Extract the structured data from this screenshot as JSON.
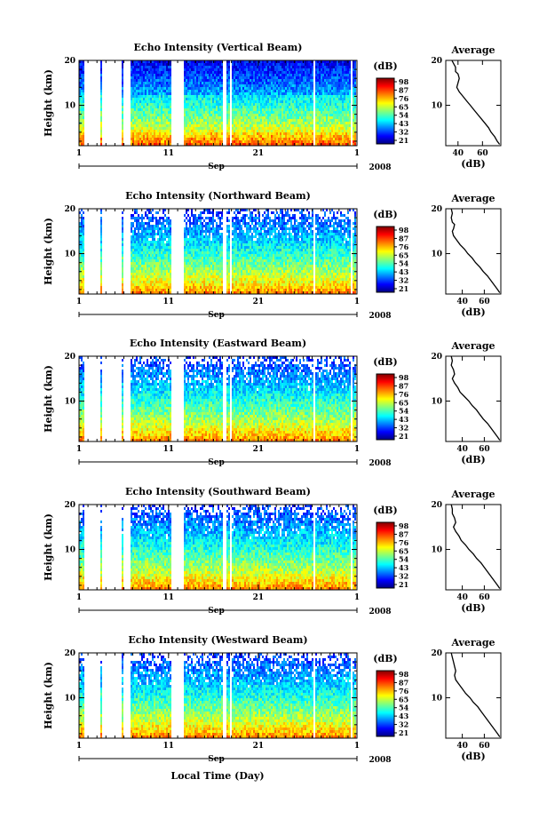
{
  "figure": {
    "xlabel": "Local Time (Day)",
    "month_label": "Sep",
    "year_label": "2008"
  },
  "chart_data": [
    {
      "type": "heatmap",
      "title": "Echo Intensity (Vertical Beam)",
      "ylabel": "Height (km)",
      "x_ticks": [
        "1",
        "11",
        "21",
        "1"
      ],
      "y_ticks": [
        "10",
        "20"
      ],
      "ylim": [
        1,
        20
      ],
      "colorbar": {
        "unit": "(dB)",
        "ticks": [
          "98",
          "87",
          "76",
          "65",
          "54",
          "43",
          "32",
          "21"
        ]
      },
      "profile": {
        "title": "Average",
        "x_ticks": [
          "40",
          "60"
        ],
        "xlabel": "(dB)",
        "y_ticks": [
          "10",
          "20"
        ],
        "xlim": [
          30,
          75
        ],
        "points": [
          [
            35,
            20
          ],
          [
            37,
            19
          ],
          [
            38,
            18.5
          ],
          [
            38,
            17.5
          ],
          [
            40,
            17
          ],
          [
            41,
            16
          ],
          [
            40,
            15
          ],
          [
            39,
            14
          ],
          [
            41,
            13
          ],
          [
            44,
            12
          ],
          [
            47,
            11
          ],
          [
            50,
            10
          ],
          [
            53,
            9
          ],
          [
            56,
            8
          ],
          [
            59,
            7
          ],
          [
            62,
            6
          ],
          [
            65,
            5
          ],
          [
            67,
            4
          ],
          [
            70,
            3
          ],
          [
            72,
            2
          ],
          [
            74,
            1.3
          ]
        ]
      }
    },
    {
      "type": "heatmap",
      "title": "Echo Intensity (Northward Beam)",
      "ylabel": "Height (km)",
      "x_ticks": [
        "1",
        "11",
        "21",
        "1"
      ],
      "y_ticks": [
        "10",
        "20"
      ],
      "ylim": [
        1,
        20
      ],
      "colorbar": {
        "unit": "(dB)",
        "ticks": [
          "98",
          "87",
          "76",
          "65",
          "54",
          "43",
          "32",
          "21"
        ]
      },
      "profile": {
        "title": "Average",
        "x_ticks": [
          "40",
          "60"
        ],
        "xlabel": "(dB)",
        "y_ticks": [
          "10",
          "20"
        ],
        "xlim": [
          25,
          75
        ],
        "points": [
          [
            30,
            20
          ],
          [
            31,
            19
          ],
          [
            30,
            18
          ],
          [
            31,
            17
          ],
          [
            33,
            16.5
          ],
          [
            32,
            15.5
          ],
          [
            31,
            15
          ],
          [
            32,
            14
          ],
          [
            35,
            13
          ],
          [
            38,
            12
          ],
          [
            42,
            11
          ],
          [
            45,
            10
          ],
          [
            49,
            9
          ],
          [
            52,
            8
          ],
          [
            56,
            7
          ],
          [
            59,
            6
          ],
          [
            63,
            5
          ],
          [
            66,
            4
          ],
          [
            69,
            3
          ],
          [
            72,
            2
          ],
          [
            74,
            1.3
          ]
        ]
      }
    },
    {
      "type": "heatmap",
      "title": "Echo Intensity (Eastward Beam)",
      "ylabel": "Height (km)",
      "x_ticks": [
        "1",
        "11",
        "21",
        "1"
      ],
      "y_ticks": [
        "10",
        "20"
      ],
      "ylim": [
        1,
        20
      ],
      "colorbar": {
        "unit": "(dB)",
        "ticks": [
          "98",
          "87",
          "76",
          "65",
          "54",
          "43",
          "32",
          "21"
        ]
      },
      "profile": {
        "title": "Average",
        "x_ticks": [
          "40",
          "60"
        ],
        "xlabel": "(dB)",
        "y_ticks": [
          "10",
          "20"
        ],
        "xlim": [
          25,
          75
        ],
        "points": [
          [
            30,
            20
          ],
          [
            31,
            19
          ],
          [
            30,
            18
          ],
          [
            32,
            17
          ],
          [
            33,
            16
          ],
          [
            31,
            15
          ],
          [
            33,
            14
          ],
          [
            36,
            13
          ],
          [
            38,
            12
          ],
          [
            42,
            11
          ],
          [
            46,
            10
          ],
          [
            49,
            9
          ],
          [
            53,
            8
          ],
          [
            56,
            7
          ],
          [
            59,
            6
          ],
          [
            63,
            5
          ],
          [
            66,
            4
          ],
          [
            69,
            3
          ],
          [
            72,
            2
          ],
          [
            74,
            1.3
          ]
        ]
      }
    },
    {
      "type": "heatmap",
      "title": "Echo Intensity (Southward Beam)",
      "ylabel": "Height (km)",
      "x_ticks": [
        "1",
        "11",
        "21",
        "1"
      ],
      "y_ticks": [
        "10",
        "20"
      ],
      "ylim": [
        1,
        20
      ],
      "colorbar": {
        "unit": "(dB)",
        "ticks": [
          "98",
          "87",
          "76",
          "65",
          "54",
          "43",
          "32",
          "21"
        ]
      },
      "profile": {
        "title": "Average",
        "x_ticks": [
          "40",
          "60"
        ],
        "xlabel": "(dB)",
        "y_ticks": [
          "10",
          "20"
        ],
        "xlim": [
          25,
          75
        ],
        "points": [
          [
            30,
            20
          ],
          [
            31,
            19
          ],
          [
            31,
            18
          ],
          [
            33,
            17
          ],
          [
            34,
            16
          ],
          [
            32,
            15
          ],
          [
            34,
            14
          ],
          [
            37,
            13
          ],
          [
            39,
            12
          ],
          [
            43,
            11
          ],
          [
            46,
            10
          ],
          [
            50,
            9
          ],
          [
            53,
            8
          ],
          [
            57,
            7
          ],
          [
            60,
            6
          ],
          [
            63,
            5
          ],
          [
            66,
            4
          ],
          [
            69,
            3
          ],
          [
            72,
            2
          ],
          [
            74,
            1.3
          ]
        ]
      }
    },
    {
      "type": "heatmap",
      "title": "Echo Intensity (Westward Beam)",
      "ylabel": "Height (km)",
      "x_ticks": [
        "1",
        "11",
        "21",
        "1"
      ],
      "y_ticks": [
        "10",
        "20"
      ],
      "ylim": [
        1,
        20
      ],
      "colorbar": {
        "unit": "(dB)",
        "ticks": [
          "98",
          "87",
          "76",
          "65",
          "54",
          "43",
          "32",
          "21"
        ]
      },
      "profile": {
        "title": "Average",
        "x_ticks": [
          "40",
          "60"
        ],
        "xlabel": "(dB)",
        "y_ticks": [
          "10",
          "20"
        ],
        "xlim": [
          25,
          75
        ],
        "points": [
          [
            30,
            20
          ],
          [
            31,
            19
          ],
          [
            32,
            18
          ],
          [
            33,
            17
          ],
          [
            34,
            16
          ],
          [
            33,
            15
          ],
          [
            34,
            14
          ],
          [
            37,
            13
          ],
          [
            40,
            12
          ],
          [
            43,
            11
          ],
          [
            47,
            10
          ],
          [
            50,
            9
          ],
          [
            54,
            8
          ],
          [
            57,
            7
          ],
          [
            60,
            6
          ],
          [
            63,
            5
          ],
          [
            66,
            4
          ],
          [
            69,
            3
          ],
          [
            72,
            2
          ],
          [
            74,
            1.3
          ]
        ]
      }
    }
  ]
}
